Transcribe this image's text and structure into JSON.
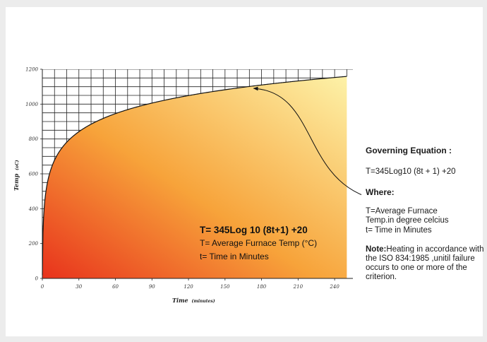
{
  "chart_data": {
    "type": "area",
    "x": [
      0,
      5,
      10,
      15,
      20,
      30,
      45,
      60,
      90,
      120,
      150,
      180,
      210,
      240,
      250
    ],
    "series": [
      {
        "values": [
          20,
          576,
          678,
          739,
          781,
          842,
          902,
          945,
          1006,
          1049,
          1082,
          1110,
          1133,
          1153,
          1159
        ]
      }
    ],
    "xlabel": "Time",
    "xlabel_unit": "(minutes)",
    "ylabel": "Temp",
    "ylabel_unit": "(oC)",
    "xticks": [
      "0",
      "30",
      "60",
      "90",
      "120",
      "150",
      "180",
      "210",
      "240"
    ],
    "yticks": [
      "0",
      "200",
      "400",
      "600",
      "800",
      "1000",
      "1200"
    ],
    "xlim": [
      0,
      255
    ],
    "ylim": [
      0,
      1200
    ],
    "grid": "upper-left",
    "annotation_arrow": {
      "from_x": 288,
      "from_y": 460,
      "to_x": 170,
      "to_y": 1090
    },
    "fill_colors": {
      "hot": "#e8321c",
      "mid": "#f7a33a",
      "cool": "#fdf2a8"
    },
    "line_color": "#111111"
  },
  "equation_box": {
    "main": "T= 345Log 10 (8t+1) +20",
    "line2": "T= Average Furnace Temp (°C)",
    "line3": "t= Time in Minutes"
  },
  "sidebar": {
    "title": "Governing Equation :",
    "equation": "T=345Log10 (8t + 1) +20",
    "where_title": "Where:",
    "where_l1": "T=Average Furnace",
    "where_l2": "Temp.in degree celcius",
    "where_l3": "t= Time in Minutes",
    "note_label": "Note:",
    "note_text": "Heating in accordance with the ISO 834:1985 ,unitil failure occurs to one or more of the criterion."
  }
}
